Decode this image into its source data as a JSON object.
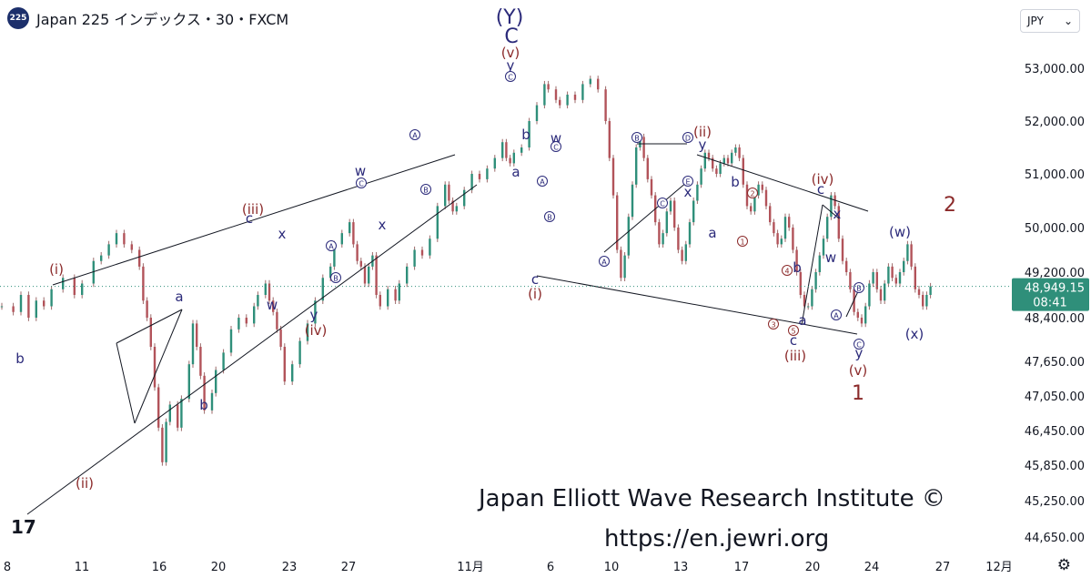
{
  "header": {
    "symbol_badge": "225",
    "title": "Japan 225 インデックス・30・FXCM"
  },
  "currency": {
    "label": "JPY",
    "chevron_icon": "chevron-down-icon"
  },
  "price_tag": {
    "price": "48,949.15",
    "countdown": "08:41",
    "color": "#2f8f7a"
  },
  "watermark": {
    "line1": "Japan Elliott Wave Research Institute ©",
    "line2": "https://en.jewri.org"
  },
  "tv_logo": "17",
  "settings_icon": "gear-icon",
  "colors": {
    "candle": "#9b6a6a",
    "wave_blue": "#2b2a7a",
    "wave_red": "#8b2a2a",
    "lines": "#131722"
  },
  "chart_data": {
    "type": "candlestick",
    "x_ticks": [
      "8",
      "11",
      "16",
      "20",
      "23",
      "27",
      "11月",
      "6",
      "10",
      "13",
      "17",
      "20",
      "24",
      "27",
      "12月"
    ],
    "y_ticks": [
      "53,000.00",
      "52,000.00",
      "51,000.00",
      "50,000.00",
      "49,200.00",
      "48,400.00",
      "47,650.00",
      "47,050.00",
      "46,450.00",
      "45,850.00",
      "45,250.00",
      "44,650.00"
    ],
    "ylim": [
      44500,
      53600
    ],
    "last_price": 48949.15,
    "series": [
      {
        "values": [
          [
            0,
            48600
          ],
          [
            3,
            48500
          ],
          [
            5,
            48800
          ],
          [
            7,
            48400
          ],
          [
            9,
            48700
          ],
          [
            11,
            48600
          ],
          [
            13,
            48900
          ],
          [
            16,
            49100
          ],
          [
            19,
            48800
          ],
          [
            21,
            49000
          ],
          [
            24,
            49400
          ],
          [
            26,
            49500
          ],
          [
            28,
            49700
          ],
          [
            30,
            49900
          ],
          [
            32,
            49700
          ],
          [
            34,
            49600
          ],
          [
            36,
            49300
          ],
          [
            37,
            48700
          ],
          [
            38,
            48400
          ],
          [
            39,
            47900
          ],
          [
            40,
            47200
          ],
          [
            41,
            46500
          ],
          [
            42,
            45900
          ],
          [
            43,
            46600
          ],
          [
            44,
            46900
          ],
          [
            46,
            46500
          ],
          [
            47,
            47000
          ],
          [
            49,
            47600
          ],
          [
            50,
            48300
          ],
          [
            51,
            47900
          ],
          [
            52,
            47400
          ],
          [
            53,
            46800
          ],
          [
            55,
            47100
          ],
          [
            56,
            47500
          ],
          [
            58,
            47800
          ],
          [
            60,
            48200
          ],
          [
            62,
            48400
          ],
          [
            64,
            48300
          ],
          [
            66,
            48600
          ],
          [
            67,
            48800
          ],
          [
            69,
            49000
          ],
          [
            70,
            48700
          ],
          [
            71,
            48500
          ],
          [
            72,
            48200
          ],
          [
            73,
            47900
          ],
          [
            74,
            47300
          ],
          [
            76,
            47600
          ],
          [
            78,
            48000
          ],
          [
            80,
            48300
          ],
          [
            82,
            48700
          ],
          [
            84,
            49100
          ],
          [
            86,
            49300
          ],
          [
            87,
            49700
          ],
          [
            89,
            49900
          ],
          [
            91,
            50100
          ],
          [
            92,
            49700
          ],
          [
            93,
            49400
          ],
          [
            94,
            49300
          ],
          [
            95,
            49000
          ],
          [
            96,
            49300
          ],
          [
            97,
            49500
          ],
          [
            98,
            48800
          ],
          [
            99,
            48600
          ],
          [
            101,
            48900
          ],
          [
            103,
            48700
          ],
          [
            104,
            49000
          ],
          [
            106,
            49300
          ],
          [
            108,
            49600
          ],
          [
            110,
            49500
          ],
          [
            112,
            49800
          ],
          [
            114,
            50400
          ],
          [
            116,
            50800
          ],
          [
            117,
            50500
          ],
          [
            118,
            50300
          ],
          [
            119,
            50400
          ],
          [
            121,
            50700
          ],
          [
            123,
            51000
          ],
          [
            125,
            50900
          ],
          [
            127,
            51100
          ],
          [
            129,
            51300
          ],
          [
            131,
            51600
          ],
          [
            132,
            51300
          ],
          [
            133,
            51200
          ],
          [
            134,
            51400
          ],
          [
            136,
            51500
          ],
          [
            138,
            52000
          ],
          [
            140,
            52300
          ],
          [
            142,
            52700
          ],
          [
            143,
            52600
          ],
          [
            145,
            52400
          ],
          [
            146,
            52300
          ],
          [
            148,
            52500
          ],
          [
            150,
            52400
          ],
          [
            152,
            52700
          ],
          [
            154,
            52800
          ],
          [
            156,
            52600
          ],
          [
            158,
            52000
          ],
          [
            159,
            51300
          ],
          [
            160,
            50600
          ],
          [
            161,
            49600
          ],
          [
            162,
            49100
          ],
          [
            163,
            49500
          ],
          [
            164,
            50200
          ],
          [
            165,
            50800
          ],
          [
            166,
            51500
          ],
          [
            167,
            51700
          ],
          [
            168,
            51300
          ],
          [
            169,
            50900
          ],
          [
            170,
            50600
          ],
          [
            171,
            50100
          ],
          [
            172,
            49700
          ],
          [
            173,
            49900
          ],
          [
            174,
            50300
          ],
          [
            175,
            50500
          ],
          [
            176,
            50000
          ],
          [
            177,
            49600
          ],
          [
            178,
            49400
          ],
          [
            179,
            49700
          ],
          [
            180,
            50100
          ],
          [
            181,
            50500
          ],
          [
            182,
            50800
          ],
          [
            183,
            51100
          ],
          [
            184,
            51400
          ],
          [
            185,
            51300
          ],
          [
            186,
            51100
          ],
          [
            187,
            51000
          ],
          [
            188,
            51200
          ],
          [
            189,
            51300
          ],
          [
            190,
            51200
          ],
          [
            191,
            51400
          ],
          [
            192,
            51500
          ],
          [
            193,
            51300
          ],
          [
            194,
            50800
          ],
          [
            195,
            50400
          ],
          [
            196,
            50300
          ],
          [
            197,
            50600
          ],
          [
            198,
            50800
          ],
          [
            199,
            50700
          ],
          [
            200,
            50400
          ],
          [
            201,
            50100
          ],
          [
            202,
            49900
          ],
          [
            203,
            49700
          ],
          [
            204,
            49800
          ],
          [
            205,
            50200
          ],
          [
            206,
            50000
          ],
          [
            207,
            49600
          ],
          [
            208,
            49200
          ],
          [
            209,
            48800
          ],
          [
            210,
            48600
          ],
          [
            211,
            48600
          ],
          [
            212,
            48900
          ],
          [
            213,
            49200
          ],
          [
            214,
            49500
          ],
          [
            215,
            49800
          ],
          [
            216,
            50200
          ],
          [
            217,
            50600
          ],
          [
            218,
            50400
          ],
          [
            219,
            49800
          ],
          [
            220,
            49400
          ],
          [
            221,
            49200
          ],
          [
            222,
            48900
          ],
          [
            223,
            48500
          ],
          [
            224,
            48400
          ],
          [
            225,
            48300
          ],
          [
            226,
            48600
          ],
          [
            227,
            49000
          ],
          [
            228,
            49200
          ],
          [
            229,
            48900
          ],
          [
            230,
            48700
          ],
          [
            231,
            49000
          ],
          [
            232,
            49300
          ],
          [
            233,
            49100
          ],
          [
            234,
            49000
          ],
          [
            235,
            49200
          ],
          [
            236,
            49400
          ],
          [
            237,
            49700
          ],
          [
            238,
            49300
          ],
          [
            239,
            48900
          ],
          [
            240,
            48800
          ],
          [
            241,
            48600
          ],
          [
            242,
            48800
          ],
          [
            243,
            48950
          ]
        ]
      }
    ],
    "annotations": {
      "blue": [
        "b",
        "c",
        "x",
        "w",
        "y",
        "a",
        "b",
        "c",
        "w",
        "x",
        "y",
        "w",
        "x",
        "(Y)",
        "C",
        "y",
        "b",
        "a",
        "c",
        "w",
        "y",
        "x",
        "b",
        "a",
        "b",
        "a",
        "b",
        "c",
        "x",
        "w",
        "c",
        "y",
        "(w)",
        "(x)"
      ],
      "red": [
        "(i)",
        "(ii)",
        "(iii)",
        "(iv)",
        "(v)",
        "(i)",
        "(ii)",
        "(iii)",
        "(iv)",
        "(v)",
        "1",
        "2"
      ],
      "circled": [
        "A",
        "B",
        "C",
        "A",
        "B",
        "A",
        "B",
        "A",
        "B",
        "C",
        "D",
        "E",
        "A",
        "B",
        "C",
        "1",
        "2",
        "3",
        "4",
        "5",
        "A",
        "B",
        "C"
      ]
    }
  }
}
